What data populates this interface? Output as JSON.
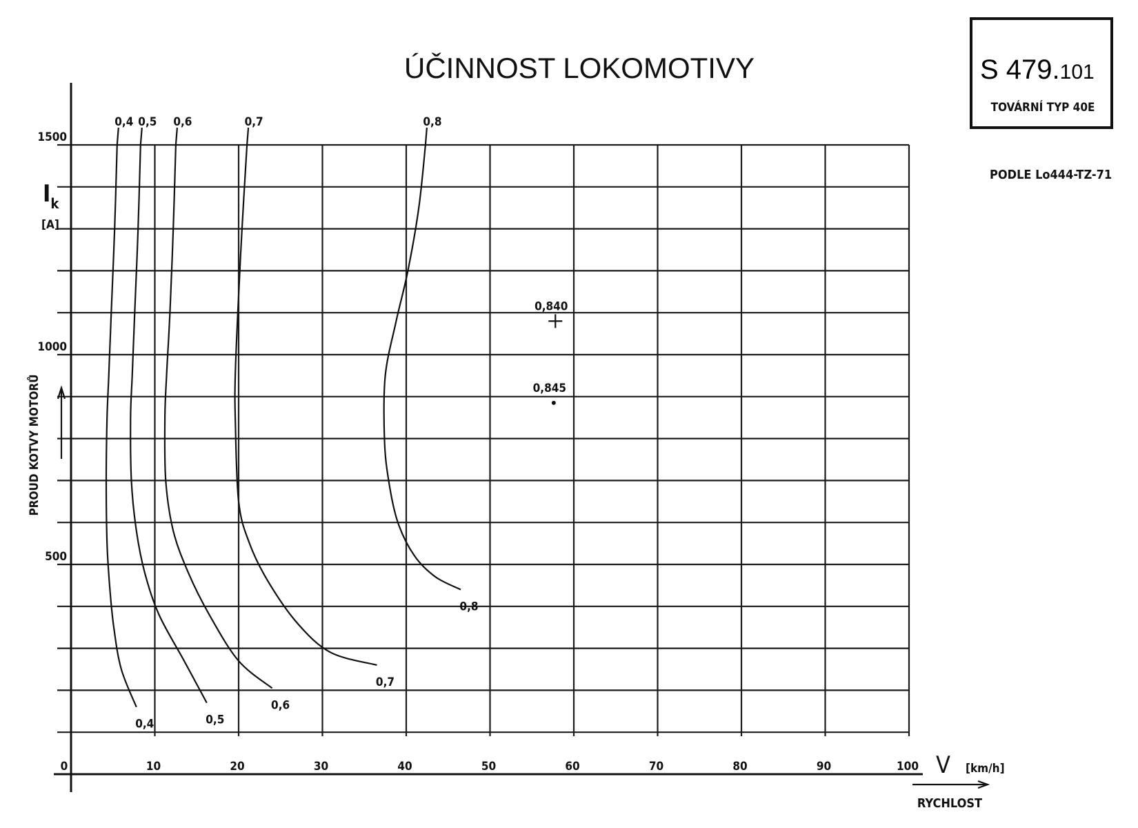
{
  "title": "ÚČINNOST LOKOMOTIVY",
  "stamp": {
    "code_main": "S 479.",
    "code_suffix": "101",
    "subtitle": "TOVÁRNÍ TYP 40E"
  },
  "reference": "PODLE Lo444-TZ-71",
  "y_axis": {
    "symbol": "I",
    "subscript": "k",
    "unit": "[A]",
    "label": "PROUD KOTVY MOTORŮ"
  },
  "x_axis": {
    "symbol": "V",
    "unit": "[km/h]",
    "label": "RYCHLOST"
  },
  "chart_data": {
    "type": "line",
    "title": "ÚČINNOST LOKOMOTIVY",
    "xlabel": "RYCHLOST",
    "ylabel": "PROUD KOTVY MOTORŮ",
    "xlim": [
      0,
      100
    ],
    "ylim": [
      0,
      1500
    ],
    "x_ticks": [
      "0",
      "10",
      "20",
      "30",
      "40",
      "50",
      "60",
      "70",
      "80",
      "90",
      "100"
    ],
    "x_tick_values": [
      0,
      10,
      20,
      30,
      40,
      50,
      60,
      70,
      80,
      90,
      100
    ],
    "y_ticks": [
      "500",
      "1000",
      "1500"
    ],
    "y_tick_values": [
      500,
      1000,
      1500
    ],
    "x_grid_step": 10,
    "y_grid_step": 100,
    "grid": true,
    "series": [
      {
        "name": "0,4",
        "top_label": "0,4",
        "end_label": "0,4",
        "x": [
          5.5,
          5.2,
          4.8,
          4.5,
          4.3,
          4.2,
          4.3,
          4.6,
          5.1,
          6.0,
          7.8
        ],
        "y": [
          1500,
          1300,
          1100,
          950,
          850,
          700,
          550,
          450,
          350,
          250,
          160
        ]
      },
      {
        "name": "0,5",
        "top_label": "0,5",
        "end_label": "0,5",
        "x": [
          8.3,
          8.0,
          7.6,
          7.3,
          7.1,
          7.2,
          7.8,
          8.8,
          10.5,
          13.5,
          16.2
        ],
        "y": [
          1500,
          1300,
          1100,
          950,
          850,
          700,
          580,
          480,
          380,
          270,
          170
        ]
      },
      {
        "name": "0,6",
        "top_label": "0,6",
        "end_label": "0,6",
        "x": [
          12.5,
          12.2,
          11.8,
          11.4,
          11.2,
          11.3,
          12.2,
          14.0,
          16.5,
          20.0,
          24.0
        ],
        "y": [
          1500,
          1300,
          1100,
          950,
          850,
          700,
          580,
          480,
          380,
          270,
          205
        ]
      },
      {
        "name": "0,7",
        "top_label": "0,7",
        "end_label": "0,7",
        "x": [
          21.0,
          20.4,
          19.9,
          19.6,
          19.6,
          20.0,
          21.3,
          23.5,
          27.0,
          31.0,
          36.5
        ],
        "y": [
          1500,
          1300,
          1100,
          950,
          850,
          650,
          550,
          460,
          360,
          290,
          260
        ]
      },
      {
        "name": "0,8",
        "top_label": "0,8",
        "end_label": "0,8",
        "x": [
          42.3,
          41.5,
          40.2,
          38.8,
          37.5,
          37.4,
          37.9,
          39.0,
          41.0,
          43.5,
          46.5
        ],
        "y": [
          1500,
          1350,
          1200,
          1080,
          950,
          800,
          700,
          600,
          520,
          470,
          440
        ]
      }
    ],
    "points": [
      {
        "label": "0,840",
        "x": 57.8,
        "y": 1080,
        "marker": "cross"
      },
      {
        "label": "0,845",
        "x": 57.6,
        "y": 885,
        "marker": "dot"
      }
    ]
  }
}
